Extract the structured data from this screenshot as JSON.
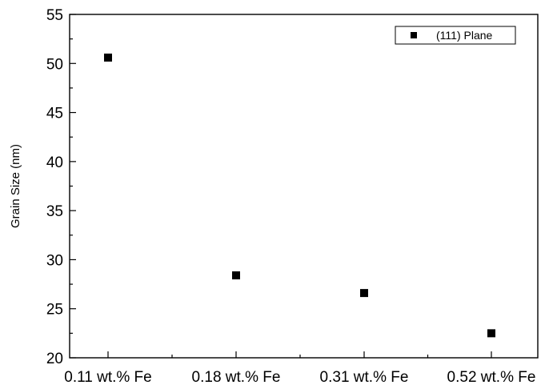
{
  "chart_data": {
    "type": "scatter",
    "title": "",
    "xlabel": "",
    "ylabel": "Grain Size (nm)",
    "categories": [
      "0.11  wt.% Fe",
      "0.18  wt.% Fe",
      "0.31  wt.% Fe",
      "0.52  wt.% Fe"
    ],
    "series": [
      {
        "name": "(111) Plane",
        "values": [
          50.6,
          28.4,
          26.6,
          22.5
        ],
        "color": "#000000",
        "marker": "square"
      }
    ],
    "ylim": [
      20,
      55
    ],
    "yticks": [
      20,
      25,
      30,
      35,
      40,
      45,
      50,
      55
    ],
    "grid": false,
    "legend": "top-right"
  }
}
